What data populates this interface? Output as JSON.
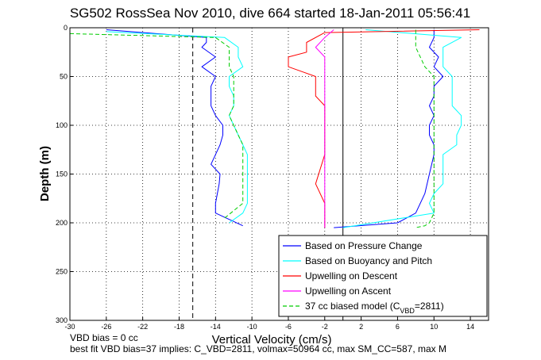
{
  "chart_data": {
    "type": "line",
    "title": "SG502 RossSea Nov 2010, dive 664 started 18-Jan-2011 05:56:41",
    "xlabel": "Vertical Velocity (cm/s)",
    "ylabel": "Depth (m)",
    "xlim": [
      -30,
      16
    ],
    "ylim": [
      300,
      0
    ],
    "y_reversed": true,
    "grid": "dotted",
    "xticks": [
      -30,
      -26,
      -22,
      -18,
      -14,
      -10,
      -6,
      -2,
      2,
      6,
      10,
      14
    ],
    "yticks": [
      0,
      50,
      100,
      150,
      200,
      250,
      300
    ],
    "vlines": [
      {
        "x": -16.5,
        "style": "dashed",
        "color": "#000000"
      },
      {
        "x": 0,
        "style": "solid",
        "color": "#000000"
      }
    ],
    "legend_position": "lower-right",
    "series": [
      {
        "name": "Based on Pressure Change",
        "color": "#0000ff",
        "style": "solid",
        "groups": [
          {
            "x": [
              -26,
              -15,
              -15,
              -15.5,
              -14,
              -15.5,
              -14,
              -14.5,
              -14.5,
              -14.5,
              -14,
              -13.2,
              -13.2,
              -13.5,
              -14,
              -14.5,
              -13.5,
              -13.6,
              -13.8,
              -14,
              -14,
              -11
            ],
            "y": [
              2,
              10,
              15,
              20,
              30,
              40,
              50,
              60,
              70,
              80,
              90,
              100,
              110,
              120,
              130,
              140,
              150,
              160,
              170,
              180,
              190,
              203
            ]
          },
          {
            "x": [
              10,
              10,
              9.5,
              10.5,
              10,
              11,
              10,
              10,
              9.5,
              10,
              9.5,
              9.5,
              10,
              10,
              9.5,
              9,
              8,
              6,
              -1
            ],
            "y": [
              2,
              10,
              20,
              30,
              40,
              50,
              60,
              70,
              80,
              90,
              100,
              110,
              120,
              130,
              150,
              170,
              190,
              200,
              205
            ]
          }
        ]
      },
      {
        "name": "Based on Buoyancy and Pitch",
        "color": "#00ffff",
        "style": "solid",
        "groups": [
          {
            "x": [
              -26,
              -13,
              -11.5,
              -11.5,
              -11,
              -12.5,
              -12.5,
              -12,
              -12,
              -12.5,
              -12,
              -11.5,
              -11,
              -10.5,
              -10.5,
              -10.5,
              -10.5,
              -11,
              -12.5
            ],
            "y": [
              4,
              10,
              20,
              30,
              40,
              50,
              60,
              70,
              80,
              90,
              100,
              110,
              120,
              130,
              150,
              160,
              180,
              190,
              200
            ]
          },
          {
            "x": [
              2.5,
              13,
              11,
              11,
              11,
              12,
              12,
              12,
              13,
              13,
              12.5,
              12.5,
              11,
              11,
              11,
              10,
              9.5,
              10,
              0
            ],
            "y": [
              2,
              10,
              20,
              30,
              40,
              50,
              60,
              80,
              90,
              100,
              110,
              120,
              130,
              150,
              160,
              170,
              180,
              190,
              205
            ]
          }
        ]
      },
      {
        "name": "Upwelling on Descent",
        "color": "#ff0000",
        "style": "solid",
        "groups": [
          {
            "x": [
              15,
              -2,
              -4,
              -4,
              -6,
              -6,
              -3,
              -3,
              -2,
              -2,
              -2,
              -3,
              -2,
              -2,
              -2
            ],
            "y": [
              2,
              5,
              15,
              25,
              30,
              40,
              50,
              70,
              80,
              100,
              130,
              160,
              180,
              190,
              205
            ]
          }
        ]
      },
      {
        "name": "Upwelling on Ascent",
        "color": "#ff00ff",
        "style": "solid",
        "groups": [
          {
            "x": [
              -1,
              -2,
              -3,
              -2,
              -2,
              -2,
              -2,
              -2,
              -2,
              -2,
              -2,
              -2,
              -2,
              -2,
              -2
            ],
            "y": [
              2,
              10,
              20,
              30,
              40,
              50,
              60,
              80,
              100,
              120,
              140,
              160,
              180,
              200,
              205
            ]
          }
        ]
      },
      {
        "name": "37 cc biased model (C",
        "name_sub": "VBD",
        "name_tail": "=2811)",
        "color": "#00cc00",
        "style": "dashed",
        "groups": [
          {
            "x": [
              -30,
              -14,
              -12.5,
              -12.5,
              -12.5,
              -12,
              -12,
              -12,
              -12,
              -12.5,
              -12,
              -11.5,
              -11,
              -11,
              -11,
              -11,
              -11,
              -11,
              -11,
              -13
            ],
            "y": [
              6,
              10,
              20,
              30,
              40,
              50,
              60,
              70,
              80,
              90,
              100,
              110,
              120,
              130,
              140,
              150,
              160,
              170,
              180,
              195
            ]
          },
          {
            "x": [
              8,
              8,
              9,
              10,
              10,
              10,
              10,
              10,
              10,
              10,
              10,
              10,
              10,
              10,
              9.5,
              9,
              8
            ],
            "y": [
              2,
              20,
              40,
              50,
              60,
              80,
              100,
              120,
              140,
              150,
              160,
              170,
              180,
              190,
              200,
              203,
              205
            ]
          }
        ]
      }
    ]
  },
  "notes": {
    "line1": "VBD bias = 0 cc",
    "line2": "best fit VBD bias=37 implies: C_VBD=2811, volmax=50964 cc, max SM_CC=587, max M"
  }
}
